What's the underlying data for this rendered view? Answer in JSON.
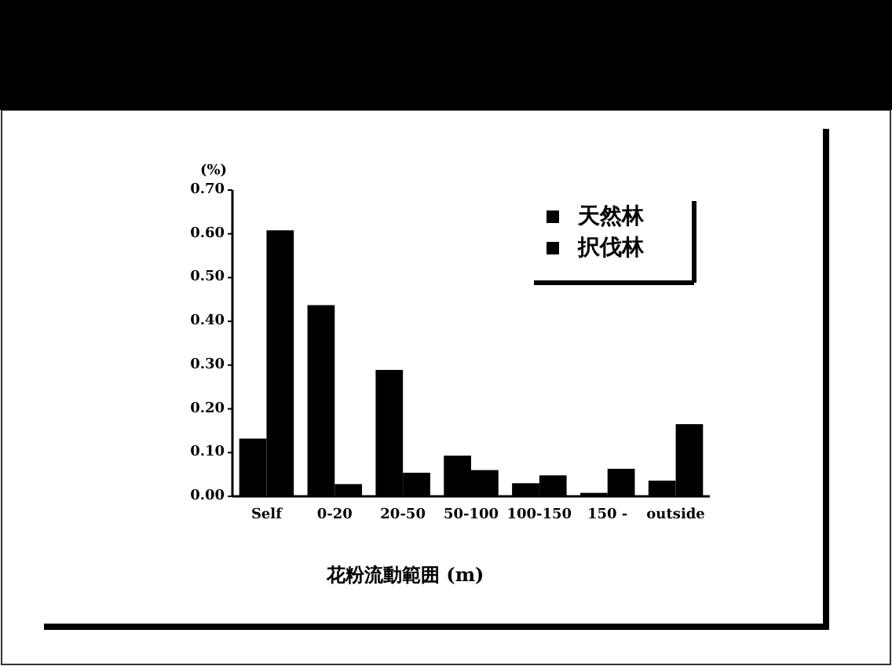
{
  "chart_data": {
    "type": "bar",
    "ylabel": "(%)",
    "xlabel": "花粉流動範囲 (m)",
    "categories": [
      "Self",
      "0-20",
      "20-50",
      "50-100",
      "100-150",
      "150 -",
      "outside"
    ],
    "series": [
      {
        "name": "天然林",
        "color": "#000000",
        "values": [
          0.132,
          0.437,
          0.289,
          0.093,
          0.03,
          0.008,
          0.036
        ]
      },
      {
        "name": "択伐林",
        "color": "#000000",
        "values": [
          0.608,
          0.028,
          0.054,
          0.06,
          0.048,
          0.063,
          0.165
        ]
      }
    ],
    "ylim": [
      0,
      0.7
    ],
    "yticks": [
      {
        "value": 0,
        "label": "0.00"
      },
      {
        "value": 0.1,
        "label": "0.10"
      },
      {
        "value": 0.2,
        "label": "0.20"
      },
      {
        "value": 0.3,
        "label": "0.30"
      },
      {
        "value": 0.4,
        "label": "0.40"
      },
      {
        "value": 0.5,
        "label": "0.50"
      },
      {
        "value": 0.6,
        "label": "0.60"
      },
      {
        "value": 0.7,
        "label": "0.70"
      }
    ],
    "legend": "top right"
  }
}
